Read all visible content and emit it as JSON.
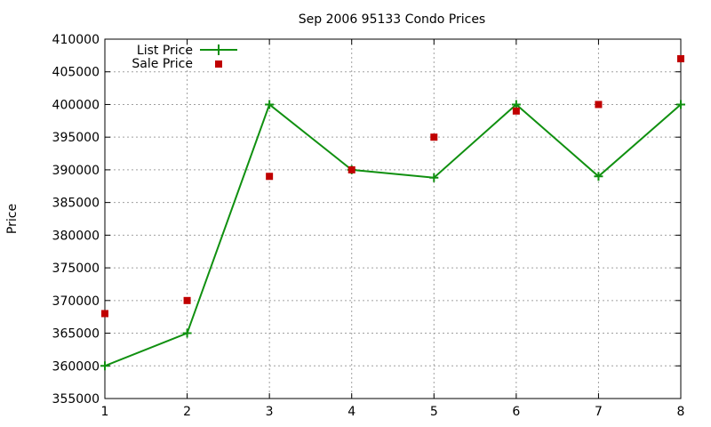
{
  "chart_data": {
    "type": "line",
    "title": "Sep 2006 95133 Condo Prices",
    "xlabel": "",
    "ylabel": "Price",
    "x": [
      1,
      2,
      3,
      4,
      5,
      6,
      7,
      8
    ],
    "xlim": [
      1,
      8
    ],
    "ylim": [
      355000,
      410000
    ],
    "xticks": [
      1,
      2,
      3,
      4,
      5,
      6,
      7,
      8
    ],
    "yticks": [
      355000,
      360000,
      365000,
      370000,
      375000,
      380000,
      385000,
      390000,
      395000,
      400000,
      405000,
      410000
    ],
    "grid": true,
    "legend_position": "top-left",
    "series": [
      {
        "name": "List Price",
        "style": "line-with-plus-markers",
        "color": "#109010",
        "values": [
          360000,
          365000,
          400000,
          390000,
          388800,
          400000,
          389000,
          400000
        ]
      },
      {
        "name": "Sale Price",
        "style": "square-points",
        "color": "#c00000",
        "values": [
          368000,
          370000,
          389000,
          390000,
          395000,
          399000,
          400000,
          407000
        ]
      }
    ]
  }
}
